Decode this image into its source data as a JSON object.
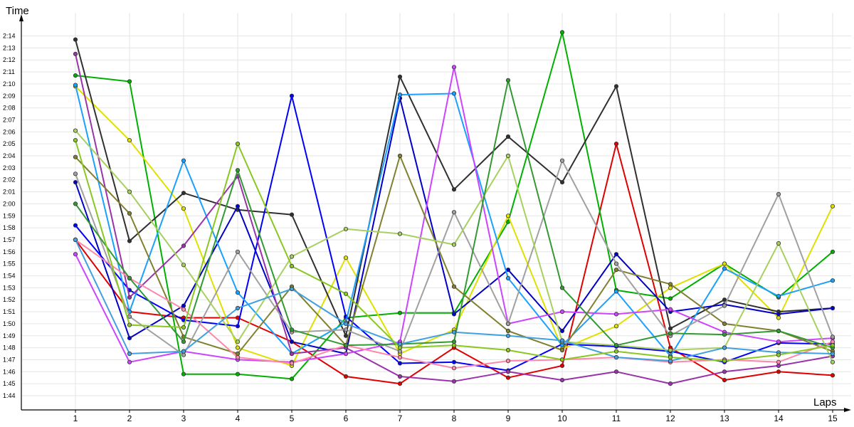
{
  "chart_data": {
    "type": "line",
    "xlabel": "Laps",
    "ylabel": "Time",
    "x": [
      1,
      2,
      3,
      4,
      5,
      6,
      7,
      8,
      9,
      10,
      11,
      12,
      13,
      14,
      15
    ],
    "xlim": [
      1,
      15
    ],
    "ylim_seconds": [
      104,
      134
    ],
    "yticks": [
      "1:44",
      "1:45",
      "1:46",
      "1:47",
      "1:48",
      "1:49",
      "1:50",
      "1:51",
      "1:52",
      "1:53",
      "1:54",
      "1:55",
      "1:56",
      "1:57",
      "1:58",
      "1:59",
      "2:00",
      "2:01",
      "2:02",
      "2:03",
      "2:04",
      "2:05",
      "2:06",
      "2:07",
      "2:08",
      "2:09",
      "2:10",
      "2:11",
      "2:12",
      "2:13",
      "2:14"
    ],
    "grid": true,
    "series": [
      {
        "color": "#e00000",
        "values": [
          "1:57",
          "1:51",
          "1:50.5",
          "1:50.5",
          "1:48.5",
          "1:45.6",
          "1:45",
          "1:48",
          "1:45.5",
          "1:46.5",
          "2:05",
          "1:48",
          "1:45.3",
          "1:46",
          "1:45.7"
        ]
      },
      {
        "color": "#00b000",
        "values": [
          "2:10.7",
          "2:10.2",
          "1:45.8",
          "1:45.8",
          "1:45.4",
          "1:50.5",
          "1:50.9",
          "1:50.9",
          "1:58.5",
          "2:14.3",
          "1:52.8",
          "1:52.1",
          "1:55",
          "1:52.2",
          "1:56"
        ]
      },
      {
        "color": "#e0e000",
        "values": [
          "2:09.8",
          "2:05.3",
          "1:59.6",
          "1:48",
          "1:46.5",
          "1:55.5",
          "1:47.5",
          "1:49.5",
          "1:59",
          "1:47.9",
          "1:49.8",
          "1:53",
          "1:55",
          "1:50.5",
          "1:59.8"
        ]
      },
      {
        "color": "#303030",
        "values": [
          "2:13.7",
          "1:56.9",
          "2:00.9",
          "1:59.5",
          "1:59.1",
          "1:49",
          "2:10.6",
          "2:01.2",
          "2:05.6",
          "2:01.8",
          "2:09.8",
          "1:49.6",
          "1:52",
          "1:51",
          "1:51.3"
        ]
      },
      {
        "color": "#0000c8",
        "values": [
          "2:01.8",
          "1:48.8",
          "1:51.5",
          "1:59.8",
          "1:48.5",
          "1:47.5",
          "2:08.8",
          "1:50.8",
          "1:54.5",
          "1:49.4",
          "1:55.8",
          "1:51",
          "1:51.6",
          "1:50.8",
          "1:51.3"
        ]
      },
      {
        "color": "#0000ff",
        "values": [
          "1:58.2",
          "1:52.8",
          "1:50.3",
          "1:49.8",
          "2:09",
          "1:50.6",
          "1:46.7",
          "1:46.8",
          "1:46.1",
          "1:48.3",
          "1:48.1",
          "1:47.7",
          "1:46.8",
          "1:48.4",
          "1:48.3"
        ]
      },
      {
        "color": "#1aa0ff",
        "values": [
          "2:09.9",
          "1:51",
          "2:03.6",
          "1:52.6",
          "1:47.5",
          "1:50.1",
          "2:09.1",
          "2:09.2",
          "1:53.8",
          "1:48.2",
          "1:52.7",
          "1:47.3",
          "1:54.6",
          "1:52.3",
          "1:53.6"
        ]
      },
      {
        "color": "#9933aa",
        "values": [
          "2:12.5",
          "1:52.2",
          "1:56.5",
          "2:02.3",
          "1:47.5",
          "1:48",
          "1:45.6",
          "1:45.2",
          "1:46",
          "1:45.3",
          "1:46",
          "1:45",
          "1:46",
          "1:46.5",
          "1:47.3"
        ]
      },
      {
        "color": "#cc44ff",
        "values": [
          "1:55.8",
          "1:46.8",
          "1:47.7",
          "1:47",
          "1:46.8",
          "1:47.5",
          "1:48.5",
          "2:11.4",
          "1:50",
          "1:51",
          "1:50.8",
          "1:51.2",
          "1:49.3",
          "1:48.5",
          "1:48.8"
        ]
      },
      {
        "color": "#808030",
        "values": [
          "2:03.9",
          "1:59.2",
          "1:48.9",
          "1:47.5",
          "1:53.1",
          "1:48.2",
          "2:04",
          "1:53.1",
          "1:49.4",
          "1:47.8",
          "1:54.5",
          "1:53.3",
          "1:50",
          "1:49.4",
          "1:47.7"
        ]
      },
      {
        "color": "#a0a0a0",
        "values": [
          "2:02.5",
          "1:50.6",
          "1:47.4",
          "1:56",
          "1:49.3",
          "1:49.5",
          "1:47.7",
          "1:59.3",
          "1:50",
          "2:03.6",
          "1:55",
          "1:49",
          "1:51.5",
          "2:00.8",
          "1:48.9"
        ]
      },
      {
        "color": "#a8d060",
        "values": [
          "2:06.1",
          "2:01",
          "1:54.9",
          "1:48.5",
          "1:55.6",
          "1:57.9",
          "1:57.5",
          "1:56.6",
          "2:04",
          "1:48.5",
          "1:48.2",
          "1:47.8",
          "1:48",
          "1:56.7",
          "1:46.8"
        ]
      },
      {
        "color": "#ff88aa",
        "values": [
          "1:57",
          "1:53.8",
          "1:51.2",
          "1:47.2",
          "1:46.7",
          "1:48.2",
          "1:47.2",
          "1:46.3",
          "1:46.9",
          "1:47",
          "1:47.2",
          "1:46.8",
          "1:47",
          "1:46.8",
          "1:48.5"
        ]
      },
      {
        "color": "#339933",
        "values": [
          "2:00",
          "1:53.8",
          "1:48.5",
          "2:02.8",
          "1:49.5",
          "1:48.2",
          "1:48.3",
          "1:48.5",
          "2:10.3",
          "1:53",
          "1:48.2",
          "1:49.2",
          "1:49.1",
          "1:49.4",
          "1:48"
        ]
      },
      {
        "color": "#40a0e0",
        "values": [
          "1:57",
          "1:47.5",
          "1:47.7",
          "1:51.3",
          "1:52.9",
          "1:50",
          "1:48.3",
          "1:49.3",
          "1:49",
          "1:48.6",
          "1:47.2",
          "1:46.9",
          "1:48",
          "1:47.6",
          "1:47.5"
        ]
      },
      {
        "color": "#88c820",
        "values": [
          "2:05.3",
          "1:49.9",
          "1:49.7",
          "2:05",
          "1:54.8",
          "1:52.5",
          "1:48",
          "1:48.2",
          "1:47.8",
          "1:47",
          "1:47.7",
          "1:47.2",
          "1:46.9",
          "1:47.4",
          "1:48.2"
        ]
      }
    ]
  }
}
